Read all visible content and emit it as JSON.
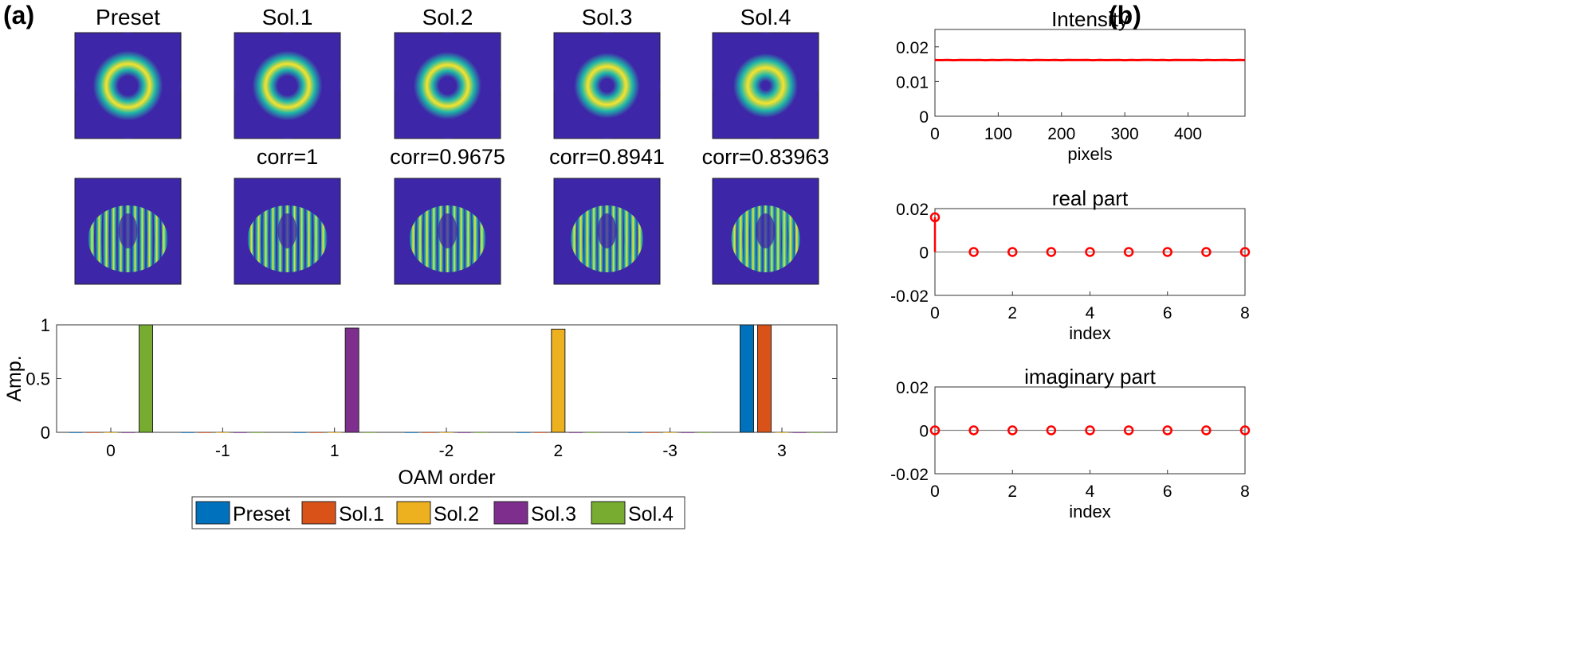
{
  "panel_a": {
    "label": "(a)",
    "columns": [
      {
        "title": "Preset",
        "corr": "",
        "ring_inner": 0.3,
        "ring_outer": 0.52,
        "fringes": 1.0
      },
      {
        "title": "Sol.1",
        "corr": "corr=1",
        "ring_inner": 0.3,
        "ring_outer": 0.52,
        "fringes": 1.0
      },
      {
        "title": "Sol.2",
        "corr": "corr=0.9675",
        "ring_inner": 0.28,
        "ring_outer": 0.5,
        "fringes": 0.95
      },
      {
        "title": "Sol.3",
        "corr": "corr=0.8941",
        "ring_inner": 0.24,
        "ring_outer": 0.48,
        "fringes": 0.9
      },
      {
        "title": "Sol.4",
        "corr": "corr=0.83963",
        "ring_inner": 0.2,
        "ring_outer": 0.47,
        "fringes": 0.85
      }
    ],
    "colors": {
      "bg": "#3e26a8",
      "mid": "#1fb8a8",
      "peak": "#f9e32a"
    }
  },
  "panel_b": {
    "label": "(b)"
  },
  "chart_data": [
    {
      "type": "bar",
      "title": "",
      "xlabel": "OAM order",
      "ylabel": "Amp.",
      "categories": [
        "0",
        "-1",
        "1",
        "-2",
        "2",
        "-3",
        "3"
      ],
      "ylim": [
        0,
        1
      ],
      "yticks": [
        "0",
        "0.5",
        "1"
      ],
      "series": [
        {
          "name": "Preset",
          "color": "#0072bd",
          "values": [
            0,
            0,
            0,
            0,
            0,
            0,
            1.0
          ]
        },
        {
          "name": "Sol.1",
          "color": "#d95319",
          "values": [
            0,
            0,
            0,
            0,
            0,
            0,
            1.0
          ]
        },
        {
          "name": "Sol.2",
          "color": "#edb120",
          "values": [
            0,
            0,
            0,
            0,
            0.96,
            0,
            0
          ]
        },
        {
          "name": "Sol.3",
          "color": "#7e2f8e",
          "values": [
            0,
            0,
            0.97,
            0,
            0,
            0,
            0
          ]
        },
        {
          "name": "Sol.4",
          "color": "#77ac30",
          "values": [
            1.0,
            0,
            0,
            0,
            0,
            0,
            0
          ]
        }
      ],
      "legend": "bottom"
    },
    {
      "type": "line",
      "title": "Intensity",
      "xlabel": "pixels",
      "ylabel": "",
      "xlim": [
        0,
        490
      ],
      "ylim": [
        0,
        0.025
      ],
      "xticks": [
        "0",
        "100",
        "200",
        "300",
        "400"
      ],
      "yticks": [
        "0",
        "0.01",
        "0.02"
      ],
      "series": [
        {
          "color": "#ff0000",
          "value": 0.0162
        }
      ]
    },
    {
      "type": "scatter",
      "title": "real part",
      "xlabel": "index",
      "ylabel": "",
      "xlim": [
        0,
        8
      ],
      "ylim": [
        -0.02,
        0.02
      ],
      "xticks": [
        "0",
        "2",
        "4",
        "6",
        "8"
      ],
      "yticks": [
        "-0.02",
        "0",
        "0.02"
      ],
      "x": [
        0,
        1,
        2,
        3,
        4,
        5,
        6,
        7,
        8
      ],
      "y": [
        0.016,
        0,
        0,
        0,
        0,
        0,
        0,
        0,
        0
      ]
    },
    {
      "type": "scatter",
      "title": "imaginary part",
      "xlabel": "index",
      "ylabel": "",
      "xlim": [
        0,
        8
      ],
      "ylim": [
        -0.02,
        0.02
      ],
      "xticks": [
        "0",
        "2",
        "4",
        "6",
        "8"
      ],
      "yticks": [
        "-0.02",
        "0",
        "0.02"
      ],
      "x": [
        0,
        1,
        2,
        3,
        4,
        5,
        6,
        7,
        8
      ],
      "y": [
        0,
        0,
        0,
        0,
        0,
        0,
        0,
        0,
        0
      ]
    }
  ]
}
